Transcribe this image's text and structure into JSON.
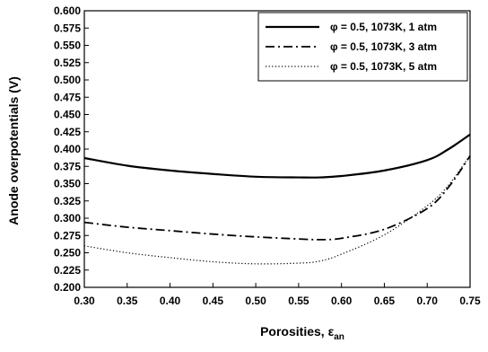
{
  "chart_data": {
    "type": "line",
    "title": "",
    "xlabel": "Porosities, ε",
    "xlabel_subscript": "an",
    "ylabel": "Anode overpotentials (V)",
    "xlim": [
      0.3,
      0.75
    ],
    "ylim": [
      0.2,
      0.6
    ],
    "x_ticks": [
      "0.30",
      "0.35",
      "0.40",
      "0.45",
      "0.50",
      "0.55",
      "0.60",
      "0.65",
      "0.70",
      "0.75"
    ],
    "y_ticks": [
      "0.200",
      "0.225",
      "0.250",
      "0.275",
      "0.300",
      "0.325",
      "0.350",
      "0.375",
      "0.400",
      "0.425",
      "0.450",
      "0.475",
      "0.500",
      "0.525",
      "0.550",
      "0.575",
      "0.600"
    ],
    "grid": false,
    "legend_position": "top-right",
    "series": [
      {
        "name": "φ = 0.5, 1073K, 1 atm",
        "style": "solid",
        "x": [
          0.3,
          0.35,
          0.4,
          0.45,
          0.5,
          0.55,
          0.575,
          0.6,
          0.65,
          0.7,
          0.725,
          0.75
        ],
        "y": [
          0.387,
          0.376,
          0.369,
          0.364,
          0.36,
          0.359,
          0.359,
          0.361,
          0.369,
          0.384,
          0.4,
          0.421
        ]
      },
      {
        "name": "φ = 0.5, 1073K, 3 atm",
        "style": "dashdot",
        "x": [
          0.3,
          0.35,
          0.4,
          0.45,
          0.5,
          0.55,
          0.575,
          0.6,
          0.65,
          0.7,
          0.725,
          0.75
        ],
        "y": [
          0.294,
          0.287,
          0.282,
          0.277,
          0.273,
          0.27,
          0.269,
          0.271,
          0.284,
          0.314,
          0.345,
          0.39
        ]
      },
      {
        "name": "φ = 0.5, 1073K, 5 atm",
        "style": "dotted",
        "x": [
          0.3,
          0.35,
          0.4,
          0.45,
          0.5,
          0.55,
          0.575,
          0.6,
          0.65,
          0.7,
          0.725,
          0.75
        ],
        "y": [
          0.26,
          0.25,
          0.243,
          0.237,
          0.234,
          0.235,
          0.238,
          0.248,
          0.276,
          0.318,
          0.348,
          0.391
        ]
      }
    ]
  }
}
